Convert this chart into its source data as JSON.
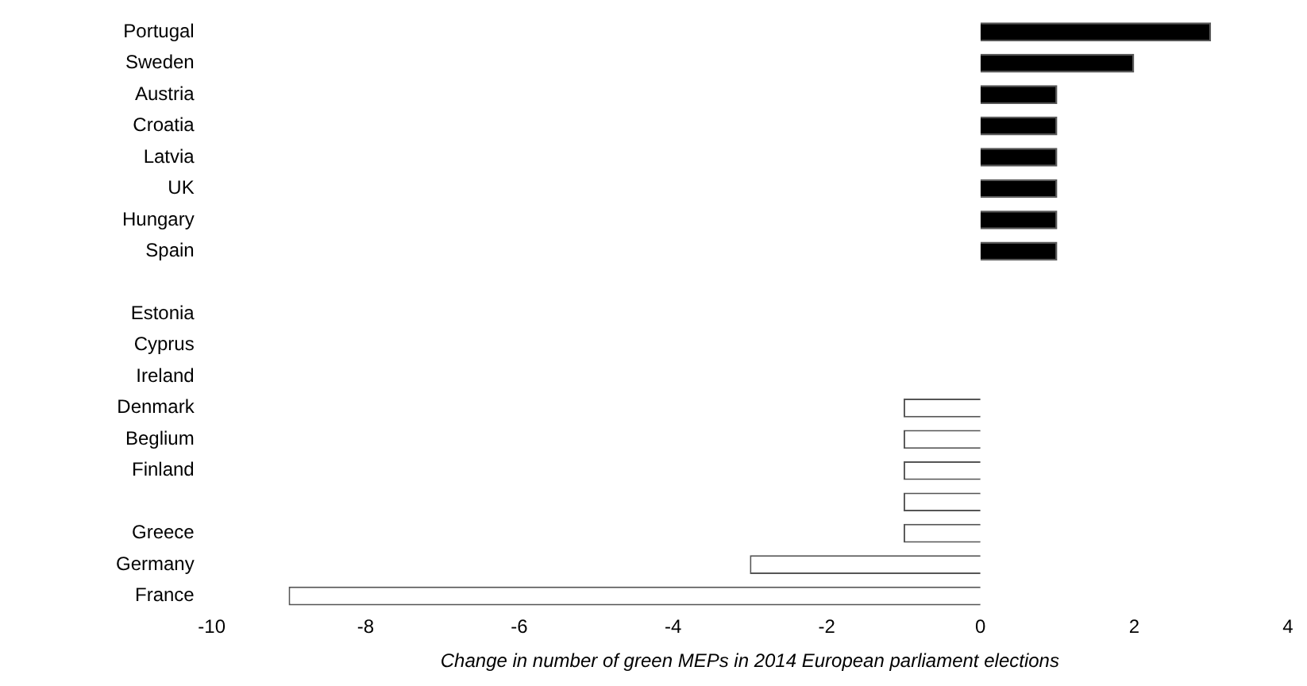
{
  "chart_data": {
    "type": "bar",
    "orientation": "horizontal",
    "xlabel": "Change in number of green MEPs in 2014 European parliament elections",
    "categories": [
      "Portugal",
      "Sweden",
      "Austria",
      "Croatia",
      "Latvia",
      "UK",
      "Hungary",
      "Spain",
      null,
      "Estonia",
      "Cyprus",
      "Ireland",
      "Denmark",
      "Beglium",
      "Finland",
      null,
      "Greece",
      "Germany",
      "France"
    ],
    "values": [
      3,
      2,
      1,
      1,
      1,
      1,
      1,
      1,
      0,
      0,
      0,
      0,
      -1,
      -1,
      -1,
      -1,
      -1,
      -3,
      -9
    ],
    "colors": [
      "#000000",
      "#000000",
      "#000000",
      "#000000",
      "#000000",
      "#000000",
      "#000000",
      "#000000",
      "#000000",
      "#000000",
      "#000000",
      "#000000",
      "#ffffff",
      "#ffffff",
      "#ffffff",
      "#ffffff",
      "#ffffff",
      "#ffffff",
      "#ffffff"
    ],
    "xlim": [
      -10,
      4
    ],
    "xticks": [
      -10,
      -8,
      -6,
      -4,
      -2,
      0,
      2,
      4
    ],
    "grid": false,
    "legend": false
  }
}
